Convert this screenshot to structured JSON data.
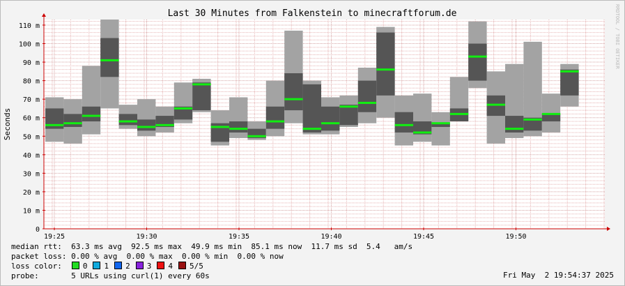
{
  "chart_data": {
    "type": "smokeping",
    "title": "Last 30 Minutes from Falkenstein to minecraftforum.de",
    "ylabel": "Seconds",
    "yunit": "m",
    "ylim": [
      0,
      113
    ],
    "yticks": [
      0,
      10,
      20,
      30,
      40,
      50,
      60,
      70,
      80,
      90,
      100,
      110
    ],
    "xticks": [
      "19:25",
      "19:30",
      "19:35",
      "19:40",
      "19:45",
      "19:50"
    ],
    "grid": true,
    "watermark": "RRDTOOL / TOBI OETIKER",
    "colors": {
      "outer": "#a3a3a3",
      "inner": "#555555",
      "median": "#11ee11",
      "grid_minor": "#e6b3b3",
      "grid_major": "#d4a3a3",
      "axis": "#cc0000"
    },
    "intervals": [
      {
        "lo": 47,
        "q1": 54,
        "median": 56,
        "q3": 65,
        "hi": 71
      },
      {
        "lo": 46,
        "q1": 55,
        "median": 57,
        "q3": 62,
        "hi": 70
      },
      {
        "lo": 51,
        "q1": 58,
        "median": 61,
        "q3": 66,
        "hi": 88
      },
      {
        "lo": 65,
        "q1": 82,
        "median": 91,
        "q3": 103,
        "hi": 113
      },
      {
        "lo": 54,
        "q1": 56,
        "median": 58,
        "q3": 62,
        "hi": 67
      },
      {
        "lo": 50,
        "q1": 53,
        "median": 55,
        "q3": 59,
        "hi": 70
      },
      {
        "lo": 52,
        "q1": 55,
        "median": 56,
        "q3": 61,
        "hi": 66
      },
      {
        "lo": 57,
        "q1": 59,
        "median": 65,
        "q3": 66,
        "hi": 79
      },
      {
        "lo": 63,
        "q1": 64,
        "median": 78,
        "q3": 79,
        "hi": 81
      },
      {
        "lo": 45,
        "q1": 47,
        "median": 55,
        "q3": 57,
        "hi": 64
      },
      {
        "lo": 49,
        "q1": 52,
        "median": 54,
        "q3": 58,
        "hi": 71
      },
      {
        "lo": 48,
        "q1": 49,
        "median": 50,
        "q3": 54,
        "hi": 58
      },
      {
        "lo": 50,
        "q1": 54,
        "median": 58,
        "q3": 66,
        "hi": 80
      },
      {
        "lo": 57,
        "q1": 64,
        "median": 70,
        "q3": 84,
        "hi": 107
      },
      {
        "lo": 51,
        "q1": 52,
        "median": 54,
        "q3": 78,
        "hi": 80
      },
      {
        "lo": 51,
        "q1": 53,
        "median": 57,
        "q3": 66,
        "hi": 71
      },
      {
        "lo": 55,
        "q1": 56,
        "median": 66,
        "q3": 67,
        "hi": 72
      },
      {
        "lo": 57,
        "q1": 63,
        "median": 68,
        "q3": 80,
        "hi": 87
      },
      {
        "lo": 60,
        "q1": 72,
        "median": 86,
        "q3": 106,
        "hi": 109
      },
      {
        "lo": 45,
        "q1": 52,
        "median": 56,
        "q3": 63,
        "hi": 72
      },
      {
        "lo": 47,
        "q1": 51,
        "median": 52,
        "q3": 58,
        "hi": 73
      },
      {
        "lo": 45,
        "q1": 55,
        "median": 57,
        "q3": 57,
        "hi": 63
      },
      {
        "lo": 58,
        "q1": 58,
        "median": 62,
        "q3": 65,
        "hi": 82
      },
      {
        "lo": 76,
        "q1": 80,
        "median": 93,
        "q3": 100,
        "hi": 112
      },
      {
        "lo": 46,
        "q1": 61,
        "median": 67,
        "q3": 72,
        "hi": 85
      },
      {
        "lo": 49,
        "q1": 52,
        "median": 54,
        "q3": 61,
        "hi": 89
      },
      {
        "lo": 50,
        "q1": 53,
        "median": 59,
        "q3": 60,
        "hi": 101
      },
      {
        "lo": 52,
        "q1": 58,
        "median": 62,
        "q3": 62,
        "hi": 73
      },
      {
        "lo": 66,
        "q1": 72,
        "median": 85,
        "q3": 86,
        "hi": 89
      }
    ]
  },
  "footer": {
    "median_rtt": "median rtt:  63.3 ms avg  92.5 ms max  49.9 ms min  85.1 ms now  11.7 ms sd  5.4   am/s",
    "packet_loss": "packet loss: 0.00 % avg  0.00 % max  0.00 % min  0.00 % now",
    "loss_color_label": "loss color:",
    "loss_colors": [
      {
        "label": "0",
        "color": "#22dd22"
      },
      {
        "label": "1",
        "color": "#11aadd"
      },
      {
        "label": "2",
        "color": "#1166ee"
      },
      {
        "label": "3",
        "color": "#8822dd"
      },
      {
        "label": "4",
        "color": "#ee1111"
      },
      {
        "label": "5/5",
        "color": "#991111"
      }
    ],
    "probe": "probe:       5 URLs using curl(1) every 60s",
    "date": "Fri May  2 19:54:37 2025"
  }
}
